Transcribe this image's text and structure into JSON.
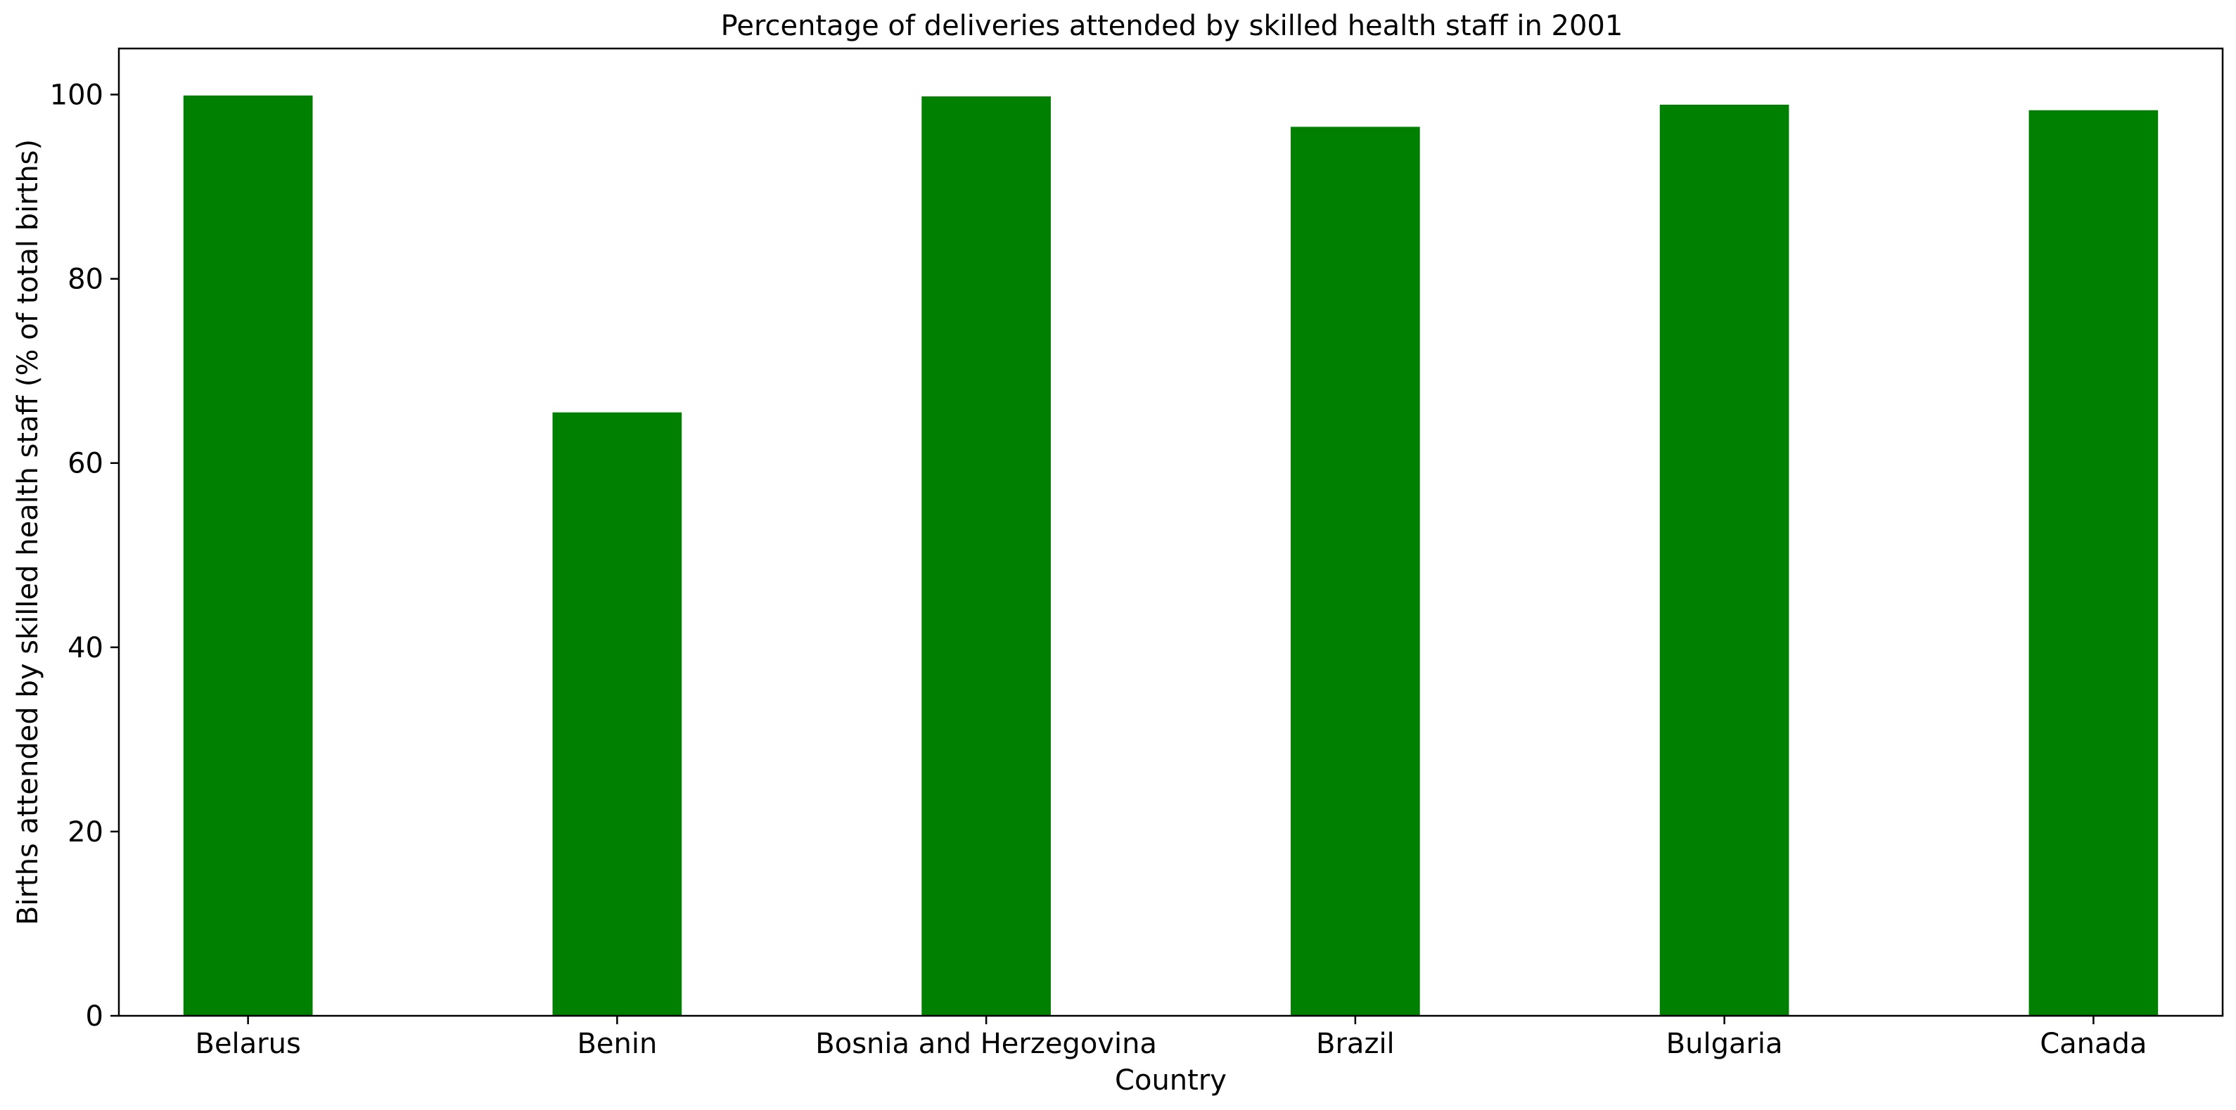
{
  "chart_data": {
    "type": "bar",
    "title": "Percentage of deliveries attended by skilled health staff in 2001",
    "xlabel": "Country",
    "ylabel": "Births attended by skilled health staff (% of total births)",
    "categories": [
      "Belarus",
      "Benin",
      "Bosnia and Herzegovina",
      "Brazil",
      "Bulgaria",
      "Canada"
    ],
    "values": [
      99.9,
      65.5,
      99.8,
      96.5,
      98.9,
      98.3
    ],
    "ylim": [
      0,
      105
    ],
    "yticks": [
      0,
      20,
      40,
      60,
      80,
      100
    ],
    "bar_color": "#008000",
    "grid": false,
    "legend": false
  }
}
